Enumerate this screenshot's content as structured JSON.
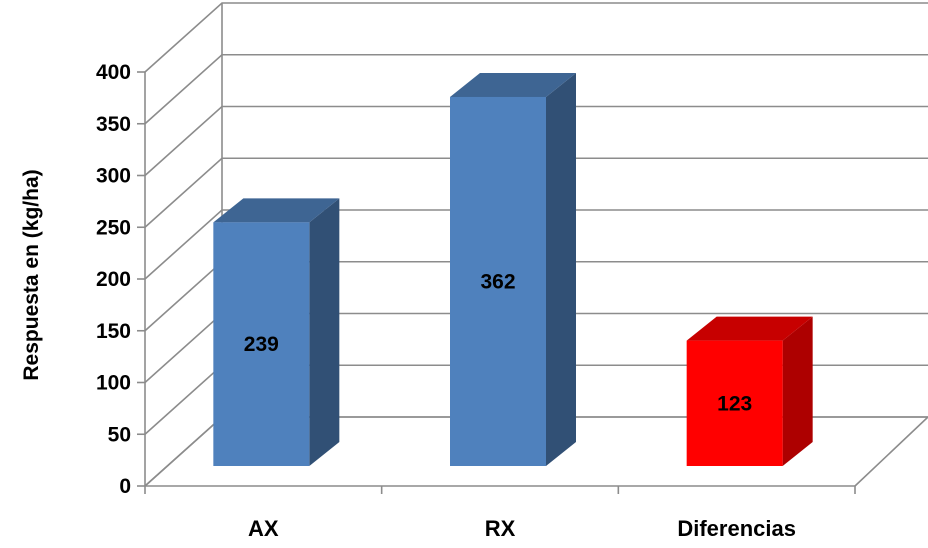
{
  "chart_data": {
    "type": "bar",
    "style": "3d-column",
    "categories": [
      "AX",
      "RX",
      "Diferencias"
    ],
    "values": [
      239,
      362,
      123
    ],
    "data_labels": [
      "239",
      "362",
      "123"
    ],
    "bar_colors": [
      "#4f81bd",
      "#4f81bd",
      "#ff0000"
    ],
    "ylabel": "Respuesta en (kg/ha)",
    "xlabel": "",
    "ylim": [
      0,
      400
    ],
    "yticks": [
      0,
      50,
      100,
      150,
      200,
      250,
      300,
      350,
      400
    ],
    "grid": true,
    "legend": "none"
  }
}
